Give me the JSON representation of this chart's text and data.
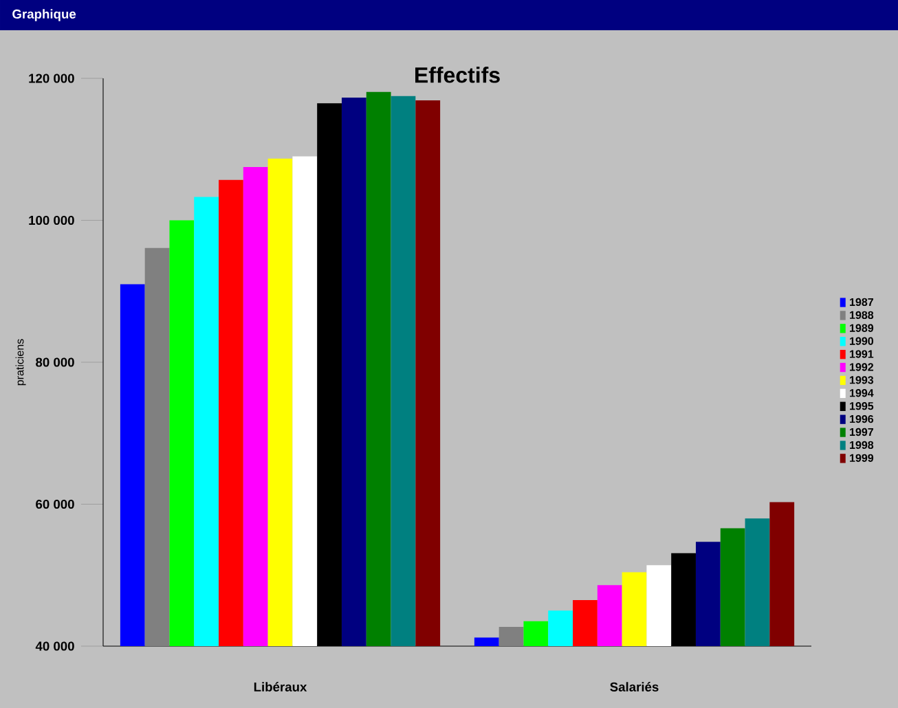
{
  "chart_data": {
    "type": "bar",
    "title": "Effectifs",
    "ylabel": "praticiens",
    "annotations": [
      "Graphique"
    ],
    "categories": [
      "Libéraux",
      "Salariés"
    ],
    "series": [
      {
        "name": "1987",
        "color": "#0000ff",
        "values": [
          91000,
          41200
        ]
      },
      {
        "name": "1988",
        "color": "#808080",
        "values": [
          96100,
          42700
        ]
      },
      {
        "name": "1989",
        "color": "#00ff00",
        "values": [
          100000,
          43500
        ]
      },
      {
        "name": "1990",
        "color": "#00ffff",
        "values": [
          103300,
          45000
        ]
      },
      {
        "name": "1991",
        "color": "#ff0000",
        "values": [
          105700,
          46500
        ]
      },
      {
        "name": "1992",
        "color": "#ff00ff",
        "values": [
          107500,
          48600
        ]
      },
      {
        "name": "1993",
        "color": "#ffff00",
        "values": [
          108700,
          50400
        ]
      },
      {
        "name": "1994",
        "color": "#ffffff",
        "values": [
          109000,
          51400
        ]
      },
      {
        "name": "1995",
        "color": "#000000",
        "values": [
          116500,
          53100
        ]
      },
      {
        "name": "1996",
        "color": "#000080",
        "values": [
          117300,
          54700
        ]
      },
      {
        "name": "1997",
        "color": "#008000",
        "values": [
          118100,
          56600
        ]
      },
      {
        "name": "1998",
        "color": "#008080",
        "values": [
          117500,
          58000
        ]
      },
      {
        "name": "1999",
        "color": "#800000",
        "values": [
          116900,
          60300
        ]
      }
    ],
    "ylim": [
      40000,
      120000
    ],
    "yticks": [
      {
        "value": 40000,
        "label": "40 000"
      },
      {
        "value": 60000,
        "label": "60 000"
      },
      {
        "value": 80000,
        "label": "80 000"
      },
      {
        "value": 100000,
        "label": "100 000"
      },
      {
        "value": 120000,
        "label": "120 000"
      }
    ],
    "legend": "right"
  }
}
